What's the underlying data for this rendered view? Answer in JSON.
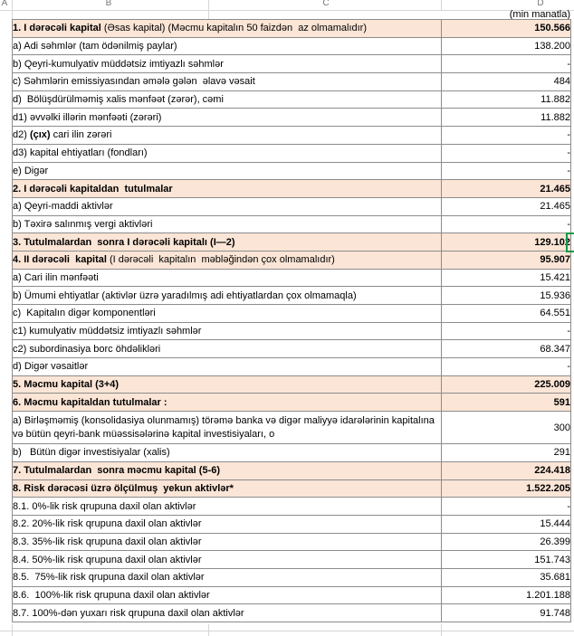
{
  "sheet": {
    "column_letters": [
      "A",
      "B",
      "C",
      "D"
    ],
    "unit_note": "(min manatla)"
  },
  "colors": {
    "highlight_row": "#FBE5D6",
    "table_border": "#8C8C8C",
    "gridline": "#D6D6D6",
    "selection_green": "#149848"
  },
  "table": {
    "rows": [
      {
        "indent": "head",
        "highlight": true,
        "parts": [
          {
            "t": "1. I dərəcəli kapital ",
            "b": true
          },
          {
            "t": "(Əsas kapital) (Məcmu kapitalın 50 faizdən  az olmamalıdır)",
            "b": false
          }
        ],
        "value": "150.566"
      },
      {
        "indent": "item",
        "highlight": false,
        "label": "a) Adi səhmlər (tam ödənilmiş paylar)",
        "value": "138.200"
      },
      {
        "indent": "item",
        "highlight": false,
        "label": "b) Qeyri-kumulyativ müddətsiz imtiyazlı səhmlər",
        "value": "-"
      },
      {
        "indent": "item",
        "highlight": false,
        "label": "c) Səhmlərin emissiyasından əmələ gələn  əlavə vəsait",
        "value": "484"
      },
      {
        "indent": "item",
        "highlight": false,
        "label": "d)  Bölüşdürülməmiş xalis mənfəət (zərər), cəmi",
        "value": "11.882"
      },
      {
        "indent": "sub",
        "highlight": false,
        "label": "d1) əvvəlki illərin mənfəəti (zərəri)",
        "value": "11.882"
      },
      {
        "indent": "sub",
        "highlight": false,
        "parts": [
          {
            "t": "d2) ",
            "b": false
          },
          {
            "t": "(çıx)",
            "b": true
          },
          {
            "t": " cari ilin zərəri",
            "b": false
          }
        ],
        "value": "-"
      },
      {
        "indent": "sub",
        "highlight": false,
        "label": "d3) kapital ehtiyatları (fondları)",
        "value": "-"
      },
      {
        "indent": "item",
        "highlight": false,
        "label": "e) Digər",
        "value": "-"
      },
      {
        "indent": "head",
        "highlight": true,
        "label": "2. I dərəcəli kapitaldan  tutulmalar",
        "value": "21.465"
      },
      {
        "indent": "item",
        "highlight": false,
        "label": "a) Qeyri-maddi aktivlər",
        "value": "21.465"
      },
      {
        "indent": "item",
        "highlight": false,
        "label": "b) Təxirə salınmış vergi aktivləri",
        "value": "-"
      },
      {
        "indent": "head",
        "highlight": true,
        "label": "3. Tutulmalardan  sonra I dərəcəli kapitalı (I—2)",
        "value": "129.102"
      },
      {
        "indent": "head",
        "highlight": true,
        "parts": [
          {
            "t": "4. II dərəcəli  kapital ",
            "b": true
          },
          {
            "t": "(I dərəcəli  kapitalın  məbləğindən çox olmamalıdır)",
            "b": false
          }
        ],
        "value": "95.907"
      },
      {
        "indent": "item",
        "highlight": false,
        "label": "a) Cari ilin mənfəəti",
        "value": "15.421"
      },
      {
        "indent": "item",
        "highlight": false,
        "label": "b) Ümumi ehtiyatlar (aktivlər üzrə yaradılmış adi ehtiyatlardan çox olmamaqla)",
        "value": "15.936"
      },
      {
        "indent": "item",
        "highlight": false,
        "label": "c)  Kapitalın digər komponentləri",
        "value": "64.551"
      },
      {
        "indent": "sub",
        "highlight": false,
        "label": "c1) kumulyativ müddətsiz imtiyazlı səhmlər",
        "value": "-"
      },
      {
        "indent": "sub",
        "highlight": false,
        "label": "c2) subordinasiya borc öhdəlikləri",
        "value": "68.347"
      },
      {
        "indent": "item",
        "highlight": false,
        "label": "d) Digər vəsaitlər",
        "value": "-"
      },
      {
        "indent": "head",
        "highlight": true,
        "label": "5. Məcmu kapital (3+4)",
        "value": "225.009"
      },
      {
        "indent": "head",
        "highlight": true,
        "label": "6. Məcmu kapitaldan tutulmalar :",
        "value": "591"
      },
      {
        "indent": "item",
        "highlight": false,
        "double": true,
        "label": "a)   Birləşməmiş (konsolidasiya olunmamış) törəmə banka və digər maliyyə idarələrinin kapitalına və bütün qeyri-bank müəssisələrinə kapital investisiyaları, o",
        "value": "300"
      },
      {
        "indent": "item",
        "highlight": false,
        "label": "b)   Bütün digər investisiyalar (xalis)",
        "value": "291"
      },
      {
        "indent": "head",
        "highlight": true,
        "label": "7. Tutulmalardan  sonra məcmu kapital (5-6)",
        "value": "224.418"
      },
      {
        "indent": "head",
        "highlight": true,
        "label": "8. Risk dərəcəsi üzrə ölçülmuş  yekun aktivlər*",
        "value": "1.522.205"
      },
      {
        "indent": "head",
        "highlight": false,
        "label": "8.1. 0%-lik risk qrupuna daxil olan aktivlər",
        "value": "-"
      },
      {
        "indent": "head",
        "highlight": false,
        "label": "8.2. 20%-lik risk qrupuna daxil olan aktivlər",
        "value": "15.444"
      },
      {
        "indent": "head",
        "highlight": false,
        "label": "8.3. 35%-lik risk qrupuna daxil olan aktivlər",
        "value": "26.399"
      },
      {
        "indent": "head",
        "highlight": false,
        "label": "8.4. 50%-lik risk qrupuna daxil olan aktivlər",
        "value": "151.743"
      },
      {
        "indent": "head",
        "highlight": false,
        "label": "8.5.  75%-lik risk qrupuna daxil olan aktivlər",
        "value": "35.681"
      },
      {
        "indent": "head",
        "highlight": false,
        "label": "8.6.  100%-lik risk qrupuna daxil olan aktivlər",
        "value": "1.201.188"
      },
      {
        "indent": "head",
        "highlight": false,
        "label": "8.7. 100%-dən yuxarı risk qrupuna daxil olan aktivlər",
        "value": "91.748"
      }
    ]
  }
}
